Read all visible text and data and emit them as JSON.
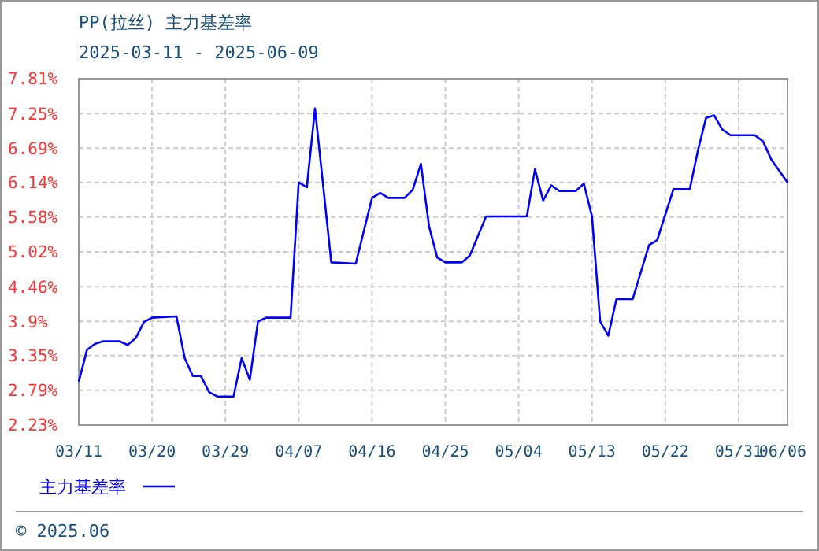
{
  "chart_data": {
    "type": "line",
    "title": "PP(拉丝) 主力基差率",
    "subtitle": "2025-03-11 - 2025-06-09",
    "annotations": [
      "© 2025.06"
    ],
    "x": [
      "2025-03-11",
      "2025-03-12",
      "2025-03-13",
      "2025-03-14",
      "2025-03-16",
      "2025-03-17",
      "2025-03-18",
      "2025-03-19",
      "2025-03-20",
      "2025-03-23",
      "2025-03-24",
      "2025-03-25",
      "2025-03-26",
      "2025-03-27",
      "2025-03-28",
      "2025-03-30",
      "2025-03-31",
      "2025-04-01",
      "2025-04-02",
      "2025-04-03",
      "2025-04-06",
      "2025-04-07",
      "2025-04-08",
      "2025-04-09",
      "2025-04-11",
      "2025-04-14",
      "2025-04-16",
      "2025-04-17",
      "2025-04-18",
      "2025-04-20",
      "2025-04-21",
      "2025-04-22",
      "2025-04-23",
      "2025-04-24",
      "2025-04-25",
      "2025-04-27",
      "2025-04-28",
      "2025-04-30",
      "2025-05-05",
      "2025-05-06",
      "2025-05-07",
      "2025-05-08",
      "2025-05-09",
      "2025-05-11",
      "2025-05-12",
      "2025-05-13",
      "2025-05-14",
      "2025-05-15",
      "2025-05-16",
      "2025-05-18",
      "2025-05-20",
      "2025-05-21",
      "2025-05-23",
      "2025-05-25",
      "2025-05-26",
      "2025-05-27",
      "2025-05-28",
      "2025-05-29",
      "2025-05-30",
      "2025-06-02",
      "2025-06-03",
      "2025-06-04",
      "2025-06-06"
    ],
    "series": [
      {
        "name": "主力基差率",
        "color": "#0000ff",
        "values": [
          2.93,
          3.44,
          3.54,
          3.58,
          3.58,
          3.52,
          3.63,
          3.89,
          3.96,
          3.98,
          3.31,
          3.02,
          3.02,
          2.76,
          2.69,
          2.69,
          3.31,
          2.96,
          3.9,
          3.96,
          3.96,
          6.14,
          6.06,
          7.33,
          4.85,
          4.83,
          5.89,
          5.97,
          5.89,
          5.89,
          6.02,
          6.44,
          5.43,
          4.93,
          4.85,
          4.85,
          4.96,
          5.59,
          5.59,
          6.35,
          5.85,
          6.09,
          6.0,
          6.0,
          6.12,
          5.59,
          3.9,
          3.67,
          4.26,
          4.26,
          5.13,
          5.21,
          6.03,
          6.03,
          6.65,
          7.18,
          7.22,
          6.99,
          6.9,
          6.9,
          6.8,
          6.51,
          6.14
        ]
      }
    ],
    "xlim": [
      "2025-03-11",
      "2025-06-06"
    ],
    "xticks": [
      {
        "value": "2025-03-11",
        "label": "03/11"
      },
      {
        "value": "2025-03-20",
        "label": "03/20"
      },
      {
        "value": "2025-03-29",
        "label": "03/29"
      },
      {
        "value": "2025-04-07",
        "label": "04/07"
      },
      {
        "value": "2025-04-16",
        "label": "04/16"
      },
      {
        "value": "2025-04-25",
        "label": "04/25"
      },
      {
        "value": "2025-05-04",
        "label": "05/04"
      },
      {
        "value": "2025-05-13",
        "label": "05/13"
      },
      {
        "value": "2025-05-22",
        "label": "05/22"
      },
      {
        "value": "2025-05-31",
        "label": "05/31"
      },
      {
        "value": "2025-06-06",
        "label": "06/06"
      }
    ],
    "ylim": [
      2.23,
      7.81
    ],
    "yticks": [
      {
        "value": 2.23,
        "label": "2.23%"
      },
      {
        "value": 2.79,
        "label": "2.79%"
      },
      {
        "value": 3.35,
        "label": "3.35%"
      },
      {
        "value": 3.9,
        "label": "3.9%"
      },
      {
        "value": 4.46,
        "label": "4.46%"
      },
      {
        "value": 5.02,
        "label": "5.02%"
      },
      {
        "value": 5.58,
        "label": "5.58%"
      },
      {
        "value": 6.14,
        "label": "6.14%"
      },
      {
        "value": 6.69,
        "label": "6.69%"
      },
      {
        "value": 7.25,
        "label": "7.25%"
      },
      {
        "value": 7.81,
        "label": "7.81%"
      }
    ],
    "grid": true,
    "legend": "bottom left",
    "marker": "none",
    "line_style": "solid"
  }
}
